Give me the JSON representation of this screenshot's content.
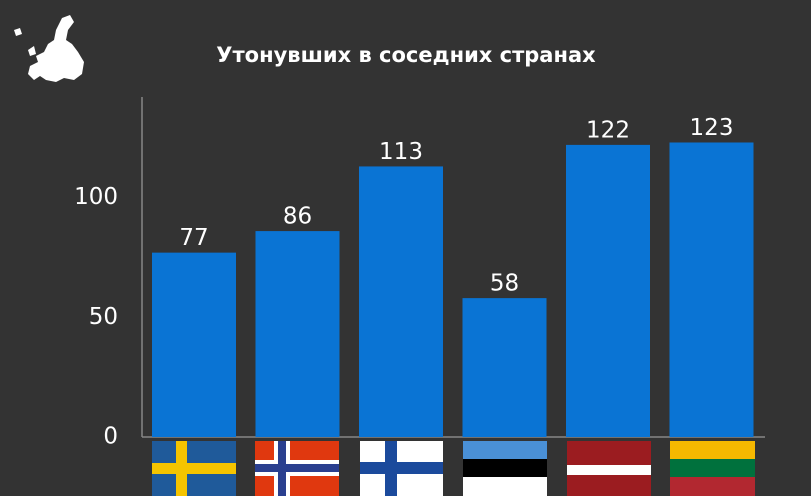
{
  "chart_data": {
    "type": "bar",
    "title": "Утонувших в соседних странах",
    "categories": [
      null,
      null,
      null,
      null,
      null,
      null
    ],
    "values": [
      77,
      86,
      113,
      58,
      122,
      123
    ],
    "color": "#0a74d4",
    "ylim": [
      0,
      142
    ],
    "yticks": [
      0,
      50,
      100
    ],
    "grid": false
  }
}
